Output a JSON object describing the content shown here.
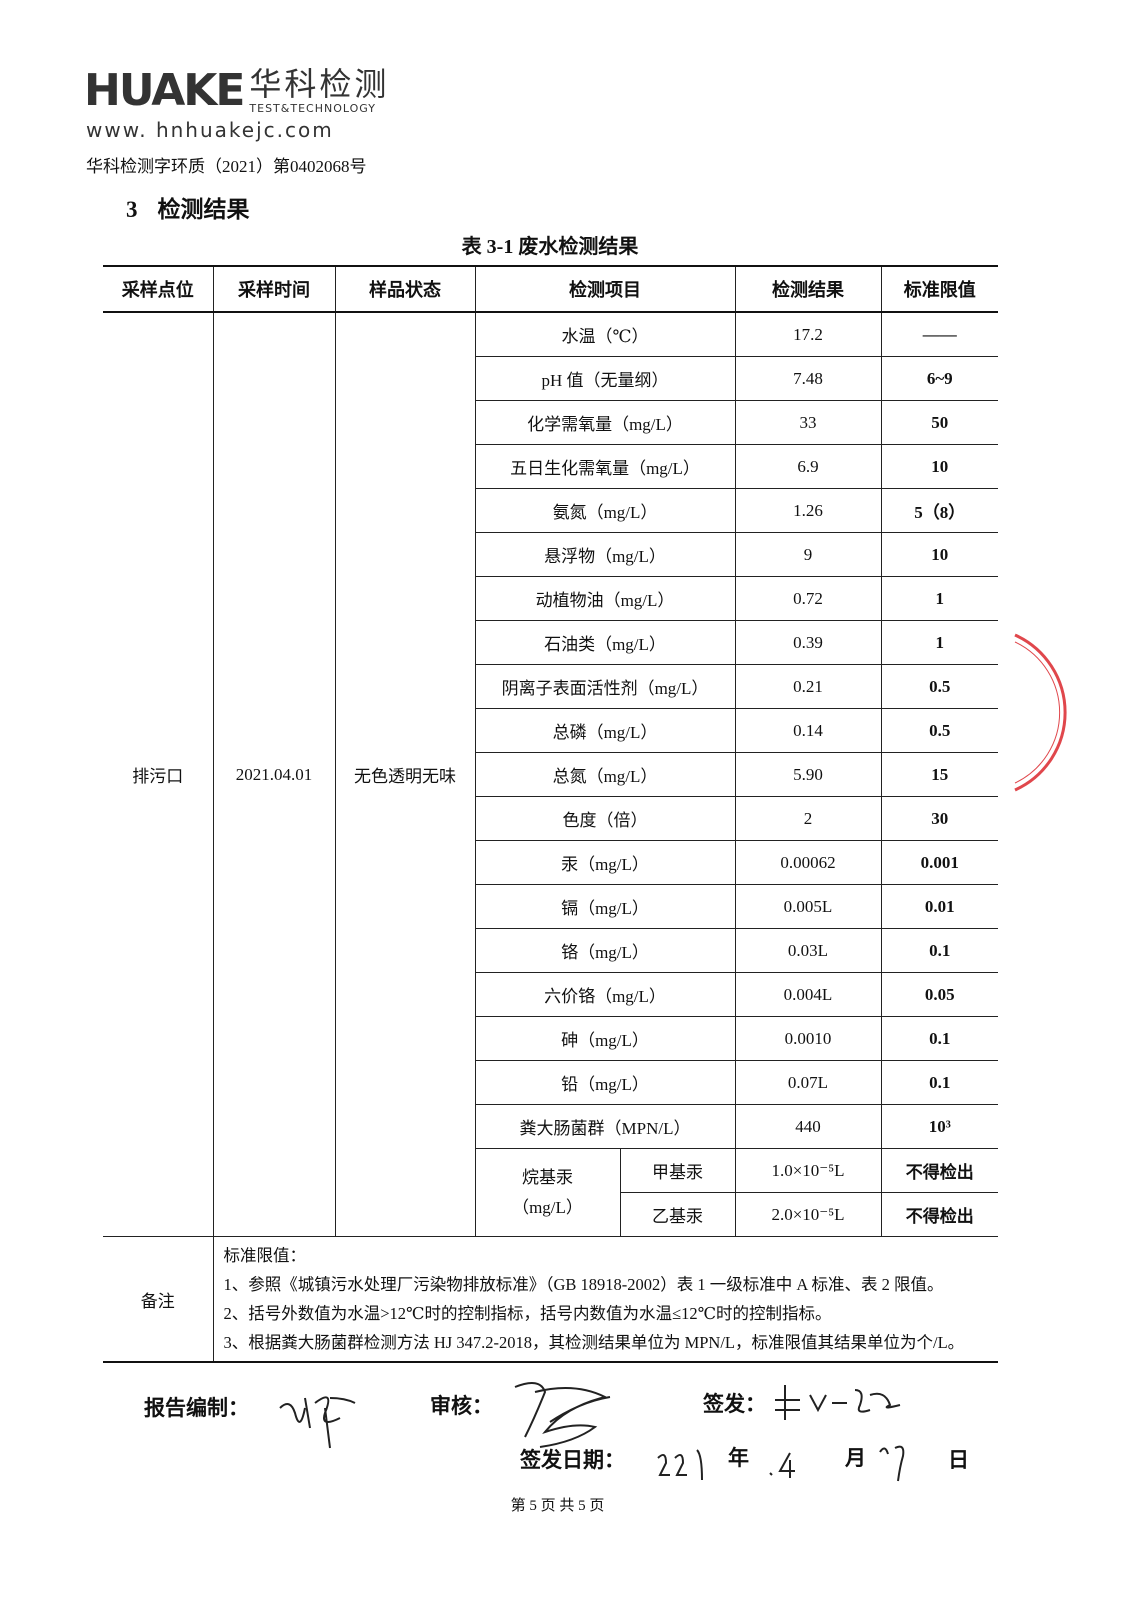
{
  "header": {
    "logo_mark": "HUAKE",
    "logo_cn": "华科检测",
    "logo_en": "TEST&TECHNOLOGY",
    "url": "www. hnhuakejc.com",
    "report_no": "华科检测字环质（2021）第0402068号"
  },
  "section": {
    "number": "3",
    "title": "检测结果"
  },
  "table_caption": "表 3-1  废水检测结果",
  "table": {
    "headers": [
      "采样点位",
      "采样时间",
      "样品状态",
      "检测项目",
      "检测结果",
      "标准限值"
    ],
    "site": "排污口",
    "date": "2021.04.01",
    "state": "无色透明无味",
    "rows": [
      {
        "item": "水温（℃）",
        "result": "17.2",
        "limit": "——"
      },
      {
        "item": "pH 值（无量纲）",
        "result": "7.48",
        "limit": "6~9"
      },
      {
        "item": "化学需氧量（mg/L）",
        "result": "33",
        "limit": "50"
      },
      {
        "item": "五日生化需氧量（mg/L）",
        "result": "6.9",
        "limit": "10"
      },
      {
        "item": "氨氮（mg/L）",
        "result": "1.26",
        "limit": "5（8）"
      },
      {
        "item": "悬浮物（mg/L）",
        "result": "9",
        "limit": "10"
      },
      {
        "item": "动植物油（mg/L）",
        "result": "0.72",
        "limit": "1"
      },
      {
        "item": "石油类（mg/L）",
        "result": "0.39",
        "limit": "1"
      },
      {
        "item": "阴离子表面活性剂（mg/L）",
        "result": "0.21",
        "limit": "0.5"
      },
      {
        "item": "总磷（mg/L）",
        "result": "0.14",
        "limit": "0.5"
      },
      {
        "item": "总氮（mg/L）",
        "result": "5.90",
        "limit": "15"
      },
      {
        "item": "色度（倍）",
        "result": "2",
        "limit": "30"
      },
      {
        "item": "汞（mg/L）",
        "result": "0.00062",
        "limit": "0.001"
      },
      {
        "item": "镉（mg/L）",
        "result": "0.005L",
        "limit": "0.01"
      },
      {
        "item": "铬（mg/L）",
        "result": "0.03L",
        "limit": "0.1"
      },
      {
        "item": "六价铬（mg/L）",
        "result": "0.004L",
        "limit": "0.05"
      },
      {
        "item": "砷（mg/L）",
        "result": "0.0010",
        "limit": "0.1"
      },
      {
        "item": "铅（mg/L）",
        "result": "0.07L",
        "limit": "0.1"
      },
      {
        "item": "粪大肠菌群（MPN/L）",
        "result": "440",
        "limit": "10³"
      }
    ],
    "alkyl": {
      "group_label": "烷基汞",
      "group_unit": "（mg/L）",
      "rows": [
        {
          "item": "甲基汞",
          "result": "1.0×10⁻⁵L",
          "limit": "不得检出"
        },
        {
          "item": "乙基汞",
          "result": "2.0×10⁻⁵L",
          "limit": "不得检出"
        }
      ]
    },
    "notes_label": "备注",
    "notes": [
      "标准限值：",
      "1、参照《城镇污水处理厂污染物排放标准》（GB 18918-2002）表 1 一级标准中 A 标准、表 2 限值。",
      "2、括号外数值为水温>12℃时的控制指标，括号内数值为水温≤12℃时的控制指标。",
      "3、根据粪大肠菌群检测方法 HJ 347.2-2018，其检测结果单位为 MPN/L，标准限值其结果单位为个/L。"
    ]
  },
  "signatures": {
    "prepared_label": "报告编制：",
    "review_label": "审核：",
    "issue_label": "签发：",
    "issue_date_label": "签发日期：",
    "year_unit": "年",
    "month_unit": "月",
    "day_unit": "日"
  },
  "footer": "第 5 页 共 5 页",
  "colors": {
    "stamp": "#e0474c",
    "text": "#111111"
  }
}
